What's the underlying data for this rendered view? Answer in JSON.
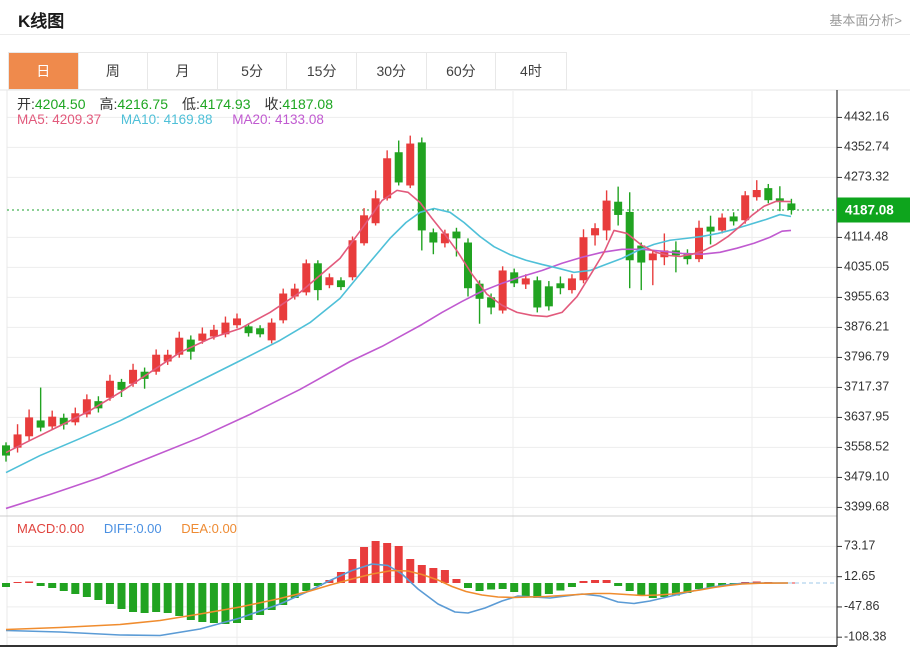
{
  "header": {
    "title": "K线图",
    "link": "基本面分析>"
  },
  "tabs": {
    "items": [
      "日",
      "周",
      "月",
      "5分",
      "15分",
      "30分",
      "60分",
      "4时"
    ],
    "selected": "日"
  },
  "quote": {
    "open_label": "开:",
    "open": "4204.50",
    "high_label": "高:",
    "high": "4216.75",
    "low_label": "低:",
    "low": "4174.93",
    "close_label": "收:",
    "close": "4187.08",
    "ma5_label": "MA5:",
    "ma5": "4209.37",
    "ma10_label": "MA10:",
    "ma10": "4169.88",
    "ma20_label": "MA20:",
    "ma20": "4133.08"
  },
  "macd_header": {
    "macd_label": "MACD:",
    "macd": "0.00",
    "diff_label": "DIFF:",
    "diff": "0.00",
    "dea_label": "DEA:",
    "dea": "0.00"
  },
  "colors": {
    "up": "#e83c3c",
    "down": "#21a321",
    "ma5": "#e25a7c",
    "ma10": "#4fc0d8",
    "ma20": "#c05ad0",
    "diff_line": "#5b9bd5",
    "dea_line": "#f08c2e",
    "price_badge": "#0ea51d",
    "current_line": "#1aa22e",
    "tab_active": "#ef8a4c",
    "grid": "#ededed",
    "axis": "#333333"
  },
  "chart_data": [
    {
      "type": "candlestick",
      "title": "K线图 (daily)",
      "legend": [
        "MA5",
        "MA10",
        "MA20"
      ],
      "grid": true,
      "legend_position": "top-left",
      "y_ticks": [
        4432.16,
        4352.74,
        4273.32,
        4114.48,
        4035.05,
        3955.63,
        3876.21,
        3796.79,
        3717.37,
        3637.95,
        3558.52,
        3479.1,
        3399.68
      ],
      "ylim": [
        3350,
        4500
      ],
      "current_price": 4187.08,
      "candles_ohlc": [
        [
          3564,
          3572,
          3521,
          3537
        ],
        [
          3558,
          3620,
          3545,
          3593
        ],
        [
          3588,
          3659,
          3577,
          3638
        ],
        [
          3630,
          3717,
          3601,
          3611
        ],
        [
          3614,
          3656,
          3606,
          3640
        ],
        [
          3637,
          3648,
          3606,
          3619
        ],
        [
          3625,
          3664,
          3617,
          3649
        ],
        [
          3646,
          3699,
          3638,
          3686
        ],
        [
          3681,
          3694,
          3651,
          3662
        ],
        [
          3690,
          3751,
          3682,
          3735
        ],
        [
          3732,
          3740,
          3692,
          3711
        ],
        [
          3727,
          3780,
          3719,
          3764
        ],
        [
          3759,
          3770,
          3714,
          3740
        ],
        [
          3759,
          3818,
          3751,
          3804
        ],
        [
          3786,
          3817,
          3777,
          3804
        ],
        [
          3804,
          3865,
          3796,
          3849
        ],
        [
          3844,
          3855,
          3791,
          3812
        ],
        [
          3841,
          3876,
          3833,
          3860
        ],
        [
          3852,
          3883,
          3844,
          3870
        ],
        [
          3858,
          3905,
          3850,
          3889
        ],
        [
          3882,
          3913,
          3874,
          3900
        ],
        [
          3879,
          3887,
          3852,
          3861
        ],
        [
          3874,
          3882,
          3850,
          3858
        ],
        [
          3842,
          3900,
          3834,
          3889
        ],
        [
          3895,
          3979,
          3887,
          3966
        ],
        [
          3958,
          3992,
          3950,
          3979
        ],
        [
          3969,
          4056,
          3961,
          4046
        ],
        [
          4046,
          4054,
          3948,
          3975
        ],
        [
          3988,
          4019,
          3980,
          4009
        ],
        [
          4001,
          4009,
          3975,
          3983
        ],
        [
          4009,
          4117,
          4001,
          4107
        ],
        [
          4099,
          4192,
          4093,
          4173
        ],
        [
          4152,
          4239,
          4146,
          4218
        ],
        [
          4218,
          4345,
          4212,
          4324
        ],
        [
          4340,
          4371,
          4252,
          4260
        ],
        [
          4252,
          4384,
          4245,
          4363
        ],
        [
          4366,
          4379,
          4080,
          4133
        ],
        [
          4128,
          4138,
          4070,
          4101
        ],
        [
          4099,
          4135,
          4088,
          4125
        ],
        [
          4130,
          4140,
          4064,
          4112
        ],
        [
          4101,
          4112,
          3958,
          3980
        ],
        [
          3992,
          4001,
          3886,
          3952
        ],
        [
          3956,
          3966,
          3911,
          3929
        ],
        [
          3921,
          4038,
          3913,
          4027
        ],
        [
          4022,
          4032,
          3983,
          3993
        ],
        [
          3990,
          4017,
          3978,
          4006
        ],
        [
          4001,
          4011,
          3916,
          3929
        ],
        [
          3985,
          3999,
          3921,
          3932
        ],
        [
          3993,
          4011,
          3964,
          3980
        ],
        [
          3975,
          4017,
          3966,
          4006
        ],
        [
          4001,
          4136,
          3993,
          4115
        ],
        [
          4120,
          4152,
          4093,
          4139
        ],
        [
          4133,
          4239,
          4107,
          4212
        ],
        [
          4209,
          4249,
          4146,
          4174
        ],
        [
          4182,
          4234,
          3980,
          4054
        ],
        [
          4093,
          4101,
          3975,
          4048
        ],
        [
          4054,
          4080,
          3988,
          4072
        ],
        [
          4062,
          4125,
          4041,
          4080
        ],
        [
          4080,
          4104,
          4022,
          4067
        ],
        [
          4070,
          4083,
          4043,
          4057
        ],
        [
          4057,
          4159,
          4049,
          4140
        ],
        [
          4143,
          4172,
          4096,
          4130
        ],
        [
          4133,
          4178,
          4125,
          4167
        ],
        [
          4170,
          4181,
          4146,
          4157
        ],
        [
          4160,
          4237,
          4151,
          4226
        ],
        [
          4221,
          4266,
          4212,
          4240
        ],
        [
          4245,
          4256,
          4205,
          4213
        ],
        [
          4218,
          4250,
          4184,
          4210
        ],
        [
          4204.5,
          4216.75,
          4174.93,
          4187.08
        ]
      ],
      "ma5_points": [
        [
          6,
          3545
        ],
        [
          30,
          3577
        ],
        [
          60,
          3616
        ],
        [
          90,
          3656
        ],
        [
          120,
          3704
        ],
        [
          150,
          3757
        ],
        [
          180,
          3810
        ],
        [
          210,
          3847
        ],
        [
          240,
          3873
        ],
        [
          270,
          3916
        ],
        [
          300,
          3969
        ],
        [
          340,
          4059
        ],
        [
          362,
          4138
        ],
        [
          382,
          4212
        ],
        [
          397,
          4239
        ],
        [
          408,
          4234
        ],
        [
          420,
          4207
        ],
        [
          432,
          4165
        ],
        [
          445,
          4122
        ],
        [
          458,
          4075
        ],
        [
          472,
          4017
        ],
        [
          487,
          3964
        ],
        [
          502,
          3935
        ],
        [
          517,
          3916
        ],
        [
          532,
          3908
        ],
        [
          547,
          3905
        ],
        [
          562,
          3916
        ],
        [
          577,
          3958
        ],
        [
          592,
          4022
        ],
        [
          604,
          4075
        ],
        [
          614,
          4133
        ],
        [
          627,
          4125
        ],
        [
          642,
          4093
        ],
        [
          656,
          4075
        ],
        [
          668,
          4067
        ],
        [
          680,
          4064
        ],
        [
          692,
          4070
        ],
        [
          704,
          4080
        ],
        [
          716,
          4096
        ],
        [
          728,
          4117
        ],
        [
          740,
          4144
        ],
        [
          752,
          4173
        ],
        [
          764,
          4197
        ],
        [
          776,
          4210
        ],
        [
          791,
          4209.37
        ]
      ],
      "ma10_points": [
        [
          6,
          3492
        ],
        [
          40,
          3537
        ],
        [
          80,
          3582
        ],
        [
          120,
          3629
        ],
        [
          160,
          3682
        ],
        [
          200,
          3735
        ],
        [
          240,
          3788
        ],
        [
          280,
          3842
        ],
        [
          310,
          3889
        ],
        [
          340,
          3953
        ],
        [
          368,
          4043
        ],
        [
          390,
          4112
        ],
        [
          406,
          4154
        ],
        [
          420,
          4181
        ],
        [
          434,
          4191
        ],
        [
          450,
          4181
        ],
        [
          464,
          4154
        ],
        [
          480,
          4117
        ],
        [
          494,
          4090
        ],
        [
          510,
          4069
        ],
        [
          526,
          4054
        ],
        [
          542,
          4043
        ],
        [
          558,
          4033
        ],
        [
          574,
          4022
        ],
        [
          590,
          4027
        ],
        [
          606,
          4043
        ],
        [
          622,
          4059
        ],
        [
          638,
          4080
        ],
        [
          654,
          4096
        ],
        [
          670,
          4107
        ],
        [
          686,
          4112
        ],
        [
          702,
          4117
        ],
        [
          718,
          4125
        ],
        [
          734,
          4136
        ],
        [
          750,
          4149
        ],
        [
          766,
          4162
        ],
        [
          780,
          4175
        ],
        [
          791,
          4169.88
        ]
      ],
      "ma20_points": [
        [
          6,
          3397
        ],
        [
          50,
          3434
        ],
        [
          100,
          3479
        ],
        [
          150,
          3532
        ],
        [
          200,
          3585
        ],
        [
          250,
          3646
        ],
        [
          300,
          3712
        ],
        [
          350,
          3786
        ],
        [
          382,
          3826
        ],
        [
          402,
          3855
        ],
        [
          422,
          3884
        ],
        [
          442,
          3916
        ],
        [
          462,
          3945
        ],
        [
          482,
          3972
        ],
        [
          502,
          3993
        ],
        [
          522,
          4011
        ],
        [
          542,
          4027
        ],
        [
          562,
          4046
        ],
        [
          582,
          4062
        ],
        [
          602,
          4075
        ],
        [
          622,
          4083
        ],
        [
          642,
          4083
        ],
        [
          662,
          4078
        ],
        [
          682,
          4072
        ],
        [
          702,
          4070
        ],
        [
          720,
          4075
        ],
        [
          737,
          4086
        ],
        [
          754,
          4099
        ],
        [
          770,
          4115
        ],
        [
          782,
          4131
        ],
        [
          791,
          4133.08
        ]
      ]
    },
    {
      "type": "bar",
      "title": "MACD",
      "y_ticks": [
        73.17,
        12.65,
        -47.86,
        -108.38
      ],
      "ylim": [
        -128,
        93
      ],
      "histogram": [
        -8,
        2,
        3,
        -6,
        -10,
        -16,
        -22,
        -28,
        -34,
        -42,
        -52,
        -58,
        -60,
        -58,
        -60,
        -66,
        -74,
        -78,
        -80,
        -82,
        -80,
        -74,
        -64,
        -54,
        -44,
        -30,
        -16,
        -6,
        6,
        22,
        48,
        72,
        84,
        80,
        74,
        48,
        36,
        30,
        26,
        8,
        -10,
        -16,
        -13,
        -12,
        -18,
        -26,
        -30,
        -22,
        -15,
        -8,
        4,
        6,
        6,
        -6,
        -16,
        -26,
        -30,
        -28,
        -25,
        -20,
        -12,
        -10,
        -6,
        -3,
        2,
        3,
        2,
        1,
        1
      ],
      "diff_points": [
        [
          6,
          -95
        ],
        [
          60,
          -98
        ],
        [
          120,
          -104
        ],
        [
          160,
          -105
        ],
        [
          200,
          -92
        ],
        [
          240,
          -70
        ],
        [
          280,
          -42
        ],
        [
          310,
          -15
        ],
        [
          330,
          5
        ],
        [
          352,
          25
        ],
        [
          372,
          38
        ],
        [
          388,
          35
        ],
        [
          402,
          18
        ],
        [
          418,
          -12
        ],
        [
          438,
          -42
        ],
        [
          455,
          -58
        ],
        [
          468,
          -60
        ],
        [
          485,
          -50
        ],
        [
          502,
          -36
        ],
        [
          518,
          -26
        ],
        [
          534,
          -28
        ],
        [
          550,
          -30
        ],
        [
          566,
          -26
        ],
        [
          582,
          -22
        ],
        [
          600,
          -26
        ],
        [
          618,
          -38
        ],
        [
          634,
          -41
        ],
        [
          650,
          -36
        ],
        [
          665,
          -29
        ],
        [
          680,
          -22
        ],
        [
          695,
          -15
        ],
        [
          710,
          -9
        ],
        [
          725,
          -4
        ],
        [
          740,
          -1
        ],
        [
          760,
          0
        ],
        [
          788,
          0
        ]
      ],
      "dea_points": [
        [
          6,
          -93
        ],
        [
          60,
          -89
        ],
        [
          120,
          -83
        ],
        [
          160,
          -75
        ],
        [
          200,
          -62
        ],
        [
          240,
          -48
        ],
        [
          280,
          -31
        ],
        [
          310,
          -16
        ],
        [
          330,
          -4
        ],
        [
          352,
          8
        ],
        [
          372,
          18
        ],
        [
          392,
          25
        ],
        [
          408,
          24
        ],
        [
          422,
          17
        ],
        [
          438,
          6
        ],
        [
          452,
          -7
        ],
        [
          466,
          -17
        ],
        [
          482,
          -24
        ],
        [
          498,
          -28
        ],
        [
          514,
          -29
        ],
        [
          530,
          -28
        ],
        [
          546,
          -27
        ],
        [
          562,
          -25
        ],
        [
          578,
          -23
        ],
        [
          594,
          -21
        ],
        [
          610,
          -21
        ],
        [
          626,
          -23
        ],
        [
          642,
          -25
        ],
        [
          658,
          -24
        ],
        [
          672,
          -22
        ],
        [
          686,
          -18
        ],
        [
          700,
          -14
        ],
        [
          714,
          -9
        ],
        [
          728,
          -5
        ],
        [
          742,
          -2
        ],
        [
          760,
          -0.5
        ],
        [
          788,
          0
        ]
      ]
    }
  ]
}
